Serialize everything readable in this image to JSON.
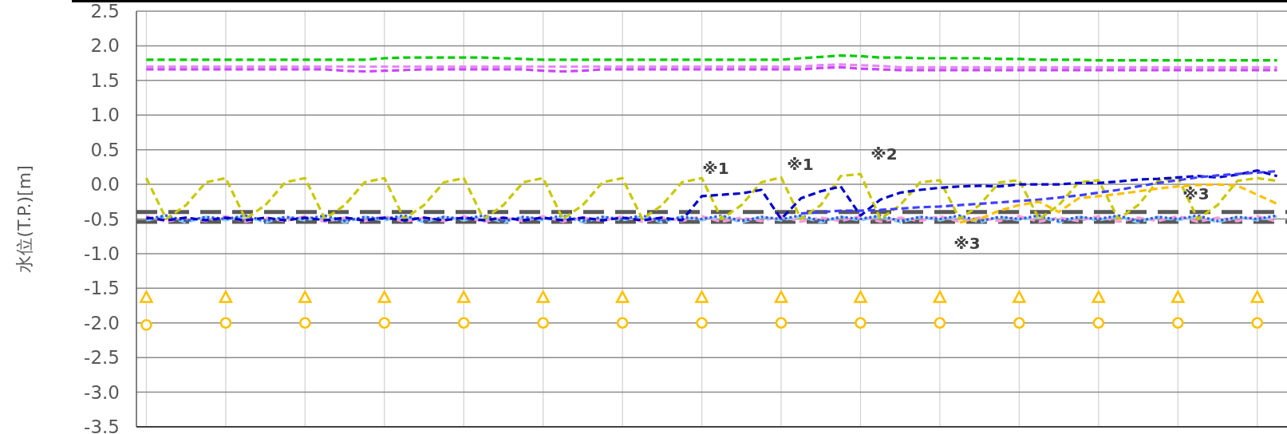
{
  "chart_data": {
    "type": "line",
    "ylabel": "水位(T.P.)[m]",
    "categories": [
      null,
      null,
      null,
      null,
      null,
      null,
      null,
      null,
      null,
      null,
      null,
      null,
      null,
      null,
      null,
      null,
      null,
      null,
      null,
      null,
      null,
      null,
      null,
      null,
      null,
      null,
      null,
      null,
      null,
      null,
      null,
      null,
      null,
      null,
      null,
      null,
      null,
      null,
      null,
      null,
      null,
      null,
      null,
      null,
      null,
      null,
      null,
      null,
      null,
      null,
      null,
      null,
      null,
      null,
      null,
      null,
      null,
      null
    ],
    "ylim": [
      -3.5,
      2.5
    ],
    "yticks": [
      {
        "value": -3.5,
        "label": "-3.5"
      },
      {
        "value": -3,
        "label": "-3.0"
      },
      {
        "value": -2.5,
        "label": "-2.5"
      },
      {
        "value": -2,
        "label": "-2.0"
      },
      {
        "value": -1.5,
        "label": "-1.5"
      },
      {
        "value": -1,
        "label": "-1.0"
      },
      {
        "value": -0.5,
        "label": "-0.5"
      },
      {
        "value": 0,
        "label": "0.0"
      },
      {
        "value": 0.5,
        "label": "0.5"
      },
      {
        "value": 1,
        "label": "1.0"
      },
      {
        "value": 1.5,
        "label": "1.5"
      },
      {
        "value": 2,
        "label": "2.0"
      },
      {
        "value": 2.5,
        "label": "2.5"
      }
    ],
    "grid": true,
    "tick_labels": "y",
    "series": [
      {
        "type": "line",
        "color": "#00cc00",
        "line_style": "dashed",
        "marker": "none",
        "values": [
          1.8,
          1.8,
          1.8,
          1.8,
          1.8,
          1.8,
          1.8,
          1.8,
          1.8,
          1.8,
          1.8,
          1.8,
          1.82,
          1.83,
          1.83,
          1.83,
          1.83,
          1.83,
          1.82,
          1.81,
          1.8,
          1.8,
          1.8,
          1.8,
          1.8,
          1.8,
          1.8,
          1.8,
          1.8,
          1.8,
          1.8,
          1.8,
          1.8,
          1.82,
          1.84,
          1.86,
          1.85,
          1.83,
          1.83,
          1.82,
          1.82,
          1.82,
          1.82,
          1.81,
          1.81,
          1.8,
          1.8,
          1.8,
          1.79,
          1.79,
          1.79,
          1.79,
          1.79,
          1.79,
          1.79,
          1.79,
          1.79,
          1.79
        ]
      },
      {
        "type": "line",
        "color": "#e488f4",
        "line_style": "dashed",
        "marker": "none",
        "values": [
          1.7,
          1.7,
          1.7,
          1.7,
          1.7,
          1.7,
          1.7,
          1.7,
          1.7,
          1.7,
          1.7,
          1.7,
          1.7,
          1.7,
          1.7,
          1.7,
          1.7,
          1.7,
          1.7,
          1.7,
          1.7,
          1.7,
          1.7,
          1.7,
          1.7,
          1.7,
          1.7,
          1.7,
          1.7,
          1.7,
          1.7,
          1.7,
          1.7,
          1.7,
          1.72,
          1.73,
          1.72,
          1.71,
          1.69,
          1.69,
          1.69,
          1.69,
          1.69,
          1.69,
          1.69,
          1.69,
          1.69,
          1.69,
          1.69,
          1.69,
          1.69,
          1.69,
          1.69,
          1.69,
          1.69,
          1.69,
          1.69,
          1.69
        ]
      },
      {
        "type": "line",
        "color": "#cc44ff",
        "line_style": "dashed",
        "marker": "none",
        "values": [
          1.66,
          1.66,
          1.66,
          1.66,
          1.66,
          1.66,
          1.66,
          1.66,
          1.66,
          1.66,
          1.64,
          1.63,
          1.64,
          1.65,
          1.66,
          1.66,
          1.66,
          1.66,
          1.66,
          1.66,
          1.64,
          1.63,
          1.64,
          1.66,
          1.66,
          1.66,
          1.66,
          1.66,
          1.66,
          1.66,
          1.66,
          1.66,
          1.66,
          1.66,
          1.68,
          1.69,
          1.67,
          1.66,
          1.65,
          1.65,
          1.65,
          1.65,
          1.65,
          1.65,
          1.65,
          1.65,
          1.65,
          1.65,
          1.65,
          1.65,
          1.65,
          1.65,
          1.65,
          1.65,
          1.65,
          1.65,
          1.65,
          1.65
        ]
      },
      {
        "type": "line",
        "color": "#ff99dd",
        "line_style": "dashed",
        "marker": "none",
        "values": [
          -0.46,
          -0.54,
          -0.48,
          -0.53,
          -0.46,
          -0.54,
          -0.48,
          -0.53,
          -0.46,
          -0.54,
          -0.48,
          -0.53,
          -0.46,
          -0.54,
          -0.48,
          -0.53,
          -0.46,
          -0.54,
          -0.48,
          -0.53,
          -0.46,
          -0.54,
          -0.48,
          -0.53,
          -0.46,
          -0.54,
          -0.48,
          -0.53,
          -0.46,
          -0.54,
          -0.48,
          -0.53,
          -0.46,
          -0.54,
          -0.48,
          -0.53,
          -0.46,
          -0.54,
          -0.48,
          -0.53,
          -0.46,
          -0.54,
          -0.48,
          -0.53,
          -0.46,
          -0.54,
          -0.48,
          -0.53,
          -0.46,
          -0.54,
          -0.48,
          -0.53,
          -0.46,
          -0.54,
          -0.48,
          -0.53,
          -0.46,
          -0.54
        ]
      },
      {
        "type": "line",
        "color": "#88d4f4",
        "line_style": "dashed",
        "marker": "none",
        "values": [
          -0.52,
          -0.46,
          -0.55,
          -0.47,
          -0.52,
          -0.46,
          -0.55,
          -0.47,
          -0.52,
          -0.46,
          -0.55,
          -0.47,
          -0.52,
          -0.46,
          -0.55,
          -0.47,
          -0.52,
          -0.46,
          -0.55,
          -0.47,
          -0.52,
          -0.46,
          -0.55,
          -0.47,
          -0.52,
          -0.46,
          -0.55,
          -0.47,
          -0.52,
          -0.46,
          -0.55,
          -0.47,
          -0.52,
          -0.46,
          -0.55,
          -0.47,
          -0.52,
          -0.46,
          -0.55,
          -0.47,
          -0.52,
          -0.46,
          -0.55,
          -0.47,
          -0.52,
          -0.46,
          -0.55,
          -0.47,
          -0.52,
          -0.46,
          -0.55,
          -0.47,
          -0.52,
          -0.46,
          -0.55,
          -0.47,
          -0.52,
          -0.46
        ]
      },
      {
        "type": "line",
        "color": "#3355ee",
        "line_style": "dotted",
        "marker": "none",
        "values": [
          -0.5,
          -0.45,
          -0.53,
          -0.47,
          -0.5,
          -0.45,
          -0.53,
          -0.47,
          -0.5,
          -0.45,
          -0.53,
          -0.47,
          -0.5,
          -0.45,
          -0.53,
          -0.47,
          -0.5,
          -0.45,
          -0.53,
          -0.47,
          -0.5,
          -0.45,
          -0.53,
          -0.47,
          -0.5,
          -0.45,
          -0.53,
          -0.47,
          -0.5,
          -0.45,
          -0.53,
          -0.47,
          -0.5,
          -0.45,
          -0.53,
          -0.47,
          -0.5,
          -0.45,
          -0.53,
          -0.47,
          -0.5,
          -0.45,
          -0.53,
          -0.47,
          -0.5,
          -0.45,
          -0.53,
          -0.47,
          -0.5,
          -0.45,
          -0.53,
          -0.47,
          -0.5,
          -0.45,
          -0.53,
          -0.47,
          -0.5,
          -0.45
        ]
      },
      {
        "type": "line",
        "color": "#c8c800",
        "line_style": "dashed",
        "marker": "none",
        "values": [
          0.09,
          -0.5,
          -0.3,
          0.03,
          0.09,
          -0.5,
          -0.3,
          0.03,
          0.09,
          -0.5,
          -0.3,
          0.03,
          0.09,
          -0.5,
          -0.3,
          0.03,
          0.09,
          -0.5,
          -0.3,
          0.03,
          0.09,
          -0.5,
          -0.3,
          0.03,
          0.09,
          -0.5,
          -0.3,
          0.03,
          0.09,
          -0.5,
          -0.3,
          0.03,
          0.1,
          -0.5,
          -0.3,
          0.12,
          0.15,
          -0.5,
          -0.3,
          0.03,
          0.06,
          -0.5,
          -0.3,
          0.03,
          0.06,
          -0.5,
          -0.3,
          0.03,
          0.06,
          -0.5,
          -0.3,
          0.05,
          0.1,
          -0.5,
          -0.3,
          0.05,
          0.09,
          0.05
        ]
      },
      {
        "type": "line",
        "color": "#0000cc",
        "line_style": "dashed",
        "marker": "none",
        "values": [
          -0.48,
          -0.52,
          -0.48,
          -0.52,
          -0.48,
          -0.52,
          -0.48,
          -0.52,
          -0.48,
          -0.52,
          -0.48,
          -0.52,
          -0.48,
          -0.52,
          -0.48,
          -0.52,
          -0.48,
          -0.52,
          -0.48,
          -0.52,
          -0.48,
          -0.52,
          -0.48,
          -0.52,
          -0.48,
          -0.52,
          -0.48,
          -0.52,
          -0.17,
          -0.15,
          -0.13,
          -0.08,
          -0.5,
          -0.2,
          -0.1,
          -0.03,
          -0.45,
          -0.22,
          -0.12,
          -0.08,
          -0.05,
          -0.03,
          -0.02,
          -0.03,
          0,
          0,
          0,
          0.02,
          0.02,
          0.04,
          0.07,
          0.08,
          0.1,
          0.12,
          0.1,
          0.14,
          0.2,
          0.12
        ]
      },
      {
        "type": "line",
        "color": "#4040ff",
        "line_style": "dashed",
        "marker": "none",
        "values": [
          null,
          null,
          null,
          null,
          null,
          null,
          null,
          null,
          null,
          null,
          null,
          null,
          null,
          null,
          null,
          null,
          null,
          null,
          null,
          null,
          null,
          null,
          null,
          null,
          null,
          null,
          null,
          null,
          null,
          null,
          null,
          null,
          null,
          -0.42,
          -0.4,
          -0.38,
          -0.38,
          -0.37,
          -0.35,
          -0.33,
          -0.32,
          -0.3,
          -0.28,
          -0.26,
          -0.24,
          -0.22,
          -0.19,
          -0.16,
          -0.12,
          -0.08,
          -0.03,
          0.02,
          0.06,
          0.1,
          0.13,
          0.15,
          0.17,
          0.19
        ]
      },
      {
        "type": "line",
        "color": "#ffc000",
        "line_style": "dashed",
        "marker": "none",
        "values": [
          null,
          null,
          null,
          null,
          null,
          null,
          null,
          null,
          null,
          null,
          null,
          null,
          null,
          null,
          null,
          null,
          null,
          null,
          null,
          null,
          null,
          null,
          null,
          null,
          null,
          null,
          null,
          null,
          null,
          null,
          null,
          null,
          null,
          null,
          null,
          null,
          null,
          null,
          null,
          null,
          null,
          -0.55,
          -0.5,
          -0.38,
          -0.3,
          -0.25,
          -0.4,
          -0.2,
          -0.17,
          -0.14,
          -0.1,
          -0.06,
          -0.03,
          -0.01,
          0,
          -0.02,
          -0.15,
          -0.28
        ]
      },
      {
        "type": "scatter",
        "color": "#ffc000",
        "marker": "triangle",
        "values": [
          -1.63,
          null,
          null,
          null,
          -1.63,
          null,
          null,
          null,
          -1.63,
          null,
          null,
          null,
          -1.63,
          null,
          null,
          null,
          -1.63,
          null,
          null,
          null,
          -1.63,
          null,
          null,
          null,
          -1.63,
          null,
          null,
          null,
          -1.63,
          null,
          null,
          null,
          -1.63,
          null,
          null,
          null,
          -1.63,
          null,
          null,
          null,
          -1.63,
          null,
          null,
          null,
          -1.63,
          null,
          null,
          null,
          -1.63,
          null,
          null,
          null,
          -1.63,
          null,
          null,
          null,
          -1.63,
          null
        ]
      },
      {
        "type": "scatter",
        "color": "#ffc000",
        "marker": "circle",
        "values": [
          -2.03,
          null,
          null,
          null,
          -2,
          null,
          null,
          null,
          -2,
          null,
          null,
          null,
          -2,
          null,
          null,
          null,
          -2,
          null,
          null,
          null,
          -2,
          null,
          null,
          null,
          -2,
          null,
          null,
          null,
          -2,
          null,
          null,
          null,
          -2,
          null,
          null,
          null,
          -2,
          null,
          null,
          null,
          -2,
          null,
          null,
          null,
          -2,
          null,
          null,
          null,
          -2,
          null,
          null,
          null,
          -2,
          null,
          null,
          null,
          -2,
          null
        ]
      }
    ],
    "ref_lines": [
      {
        "axis": "y",
        "value": -0.4,
        "color": "#595959",
        "line_style": "dashed"
      },
      {
        "axis": "y",
        "value": -0.54,
        "color": "#595959",
        "line_style": "dashed"
      }
    ],
    "annotations": [
      "※1",
      "※1",
      "※2",
      "※3",
      "※3"
    ]
  }
}
